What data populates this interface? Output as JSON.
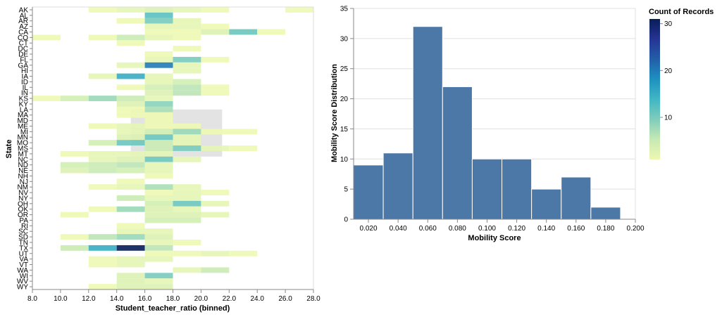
{
  "chart_data": [
    {
      "type": "heatmap",
      "xlabel": "Student_teacher_ratio (binned)",
      "ylabel": "State",
      "xlim": [
        8,
        28
      ],
      "x_ticks": [
        "8.0",
        "10.0",
        "12.0",
        "14.0",
        "16.0",
        "18.0",
        "20.0",
        "22.0",
        "24.0",
        "26.0",
        "28.0"
      ],
      "x_bin_width": 2,
      "states": [
        "AK",
        "AL",
        "AR",
        "AZ",
        "CA",
        "CO",
        "CT",
        "DC",
        "DE",
        "FL",
        "GA",
        "HI",
        "IA",
        "ID",
        "IL",
        "IN",
        "KS",
        "KY",
        "LA",
        "MA",
        "MD",
        "ME",
        "MI",
        "MN",
        "MO",
        "MS",
        "MT",
        "NC",
        "ND",
        "NE",
        "NH",
        "NJ",
        "NM",
        "NV",
        "NY",
        "OH",
        "OK",
        "OR",
        "PA",
        "RI",
        "SC",
        "SD",
        "TN",
        "TX",
        "UT",
        "VA",
        "VT",
        "WA",
        "WI",
        "WV",
        "WY"
      ],
      "cells": [
        [
          "AK",
          12,
          1
        ],
        [
          "AK",
          14,
          2
        ],
        [
          "AK",
          16,
          3
        ],
        [
          "AK",
          18,
          2
        ],
        [
          "AK",
          20,
          1
        ],
        [
          "AK",
          26,
          1
        ],
        [
          "AL",
          16,
          12
        ],
        [
          "AR",
          14,
          1
        ],
        [
          "AR",
          16,
          10
        ],
        [
          "AR",
          18,
          2
        ],
        [
          "AZ",
          16,
          2
        ],
        [
          "AZ",
          18,
          2
        ],
        [
          "AZ",
          20,
          1
        ],
        [
          "CA",
          16,
          1
        ],
        [
          "CA",
          18,
          1
        ],
        [
          "CA",
          20,
          3
        ],
        [
          "CA",
          22,
          11
        ],
        [
          "CA",
          24,
          1
        ],
        [
          "CO",
          8,
          1
        ],
        [
          "CO",
          12,
          1
        ],
        [
          "CO",
          14,
          5
        ],
        [
          "CO",
          16,
          2
        ],
        [
          "CO",
          18,
          1
        ],
        [
          "CT",
          14,
          1
        ],
        [
          "DC",
          18,
          1
        ],
        [
          "DE",
          16,
          1
        ],
        [
          "FL",
          16,
          2
        ],
        [
          "FL",
          18,
          10
        ],
        [
          "FL",
          20,
          1
        ],
        [
          "GA",
          14,
          2
        ],
        [
          "GA",
          16,
          20
        ],
        [
          "GA",
          18,
          2
        ],
        [
          "HI",
          18,
          2
        ],
        [
          "IA",
          12,
          2
        ],
        [
          "IA",
          14,
          15
        ],
        [
          "IA",
          16,
          2
        ],
        [
          "ID",
          16,
          2
        ],
        [
          "ID",
          18,
          4
        ],
        [
          "IL",
          14,
          1
        ],
        [
          "IL",
          16,
          4
        ],
        [
          "IL",
          18,
          6
        ],
        [
          "IL",
          20,
          1
        ],
        [
          "IN",
          16,
          3
        ],
        [
          "IN",
          18,
          6
        ],
        [
          "IN",
          20,
          1
        ],
        [
          "KS",
          8,
          1
        ],
        [
          "KS",
          10,
          4
        ],
        [
          "KS",
          12,
          8
        ],
        [
          "KS",
          14,
          5
        ],
        [
          "KS",
          16,
          2
        ],
        [
          "KY",
          14,
          3
        ],
        [
          "KY",
          16,
          9
        ],
        [
          "LA",
          14,
          1
        ],
        [
          "LA",
          16,
          7
        ],
        [
          "MA",
          14,
          1
        ],
        [
          "MA",
          16,
          1
        ],
        [
          "MD",
          16,
          1
        ],
        [
          "ME",
          12,
          1
        ],
        [
          "ME",
          14,
          2
        ],
        [
          "ME",
          16,
          1
        ],
        [
          "ME",
          18,
          1
        ],
        [
          "MI",
          14,
          2
        ],
        [
          "MI",
          16,
          4
        ],
        [
          "MI",
          18,
          8
        ],
        [
          "MI",
          20,
          1
        ],
        [
          "MI",
          22,
          1
        ],
        [
          "MN",
          14,
          3
        ],
        [
          "MN",
          16,
          11
        ],
        [
          "MN",
          18,
          2
        ],
        [
          "MO",
          12,
          4
        ],
        [
          "MO",
          14,
          11
        ],
        [
          "MO",
          16,
          5
        ],
        [
          "MO",
          18,
          2
        ],
        [
          "MS",
          16,
          5
        ],
        [
          "MS",
          18,
          10
        ],
        [
          "MS",
          20,
          2
        ],
        [
          "MS",
          22,
          1
        ],
        [
          "MT",
          10,
          1
        ],
        [
          "MT",
          12,
          2
        ],
        [
          "MT",
          14,
          2
        ],
        [
          "MT",
          16,
          2
        ],
        [
          "NC",
          12,
          2
        ],
        [
          "NC",
          14,
          3
        ],
        [
          "NC",
          16,
          11
        ],
        [
          "NC",
          18,
          2
        ],
        [
          "ND",
          10,
          4
        ],
        [
          "ND",
          12,
          5
        ],
        [
          "ND",
          14,
          6
        ],
        [
          "ND",
          16,
          2
        ],
        [
          "NE",
          10,
          3
        ],
        [
          "NE",
          12,
          5
        ],
        [
          "NE",
          14,
          4
        ],
        [
          "NE",
          16,
          2
        ],
        [
          "NH",
          16,
          1
        ],
        [
          "NJ",
          14,
          1
        ],
        [
          "NM",
          12,
          1
        ],
        [
          "NM",
          14,
          2
        ],
        [
          "NM",
          16,
          7
        ],
        [
          "NM",
          18,
          2
        ],
        [
          "NV",
          16,
          1
        ],
        [
          "NV",
          18,
          2
        ],
        [
          "NV",
          20,
          1
        ],
        [
          "NY",
          14,
          5
        ],
        [
          "NY",
          16,
          2
        ],
        [
          "NY",
          18,
          2
        ],
        [
          "OH",
          16,
          4
        ],
        [
          "OH",
          18,
          11
        ],
        [
          "OH",
          20,
          2
        ],
        [
          "OK",
          12,
          1
        ],
        [
          "OK",
          14,
          8
        ],
        [
          "OK",
          16,
          3
        ],
        [
          "OK",
          18,
          2
        ],
        [
          "OR",
          10,
          1
        ],
        [
          "OR",
          16,
          3
        ],
        [
          "OR",
          18,
          3
        ],
        [
          "OR",
          20,
          2
        ],
        [
          "PA",
          16,
          4
        ],
        [
          "PA",
          18,
          4
        ],
        [
          "RI",
          14,
          1
        ],
        [
          "SC",
          14,
          2
        ],
        [
          "SC",
          16,
          2
        ],
        [
          "SD",
          10,
          1
        ],
        [
          "SD",
          12,
          6
        ],
        [
          "SD",
          14,
          8
        ],
        [
          "SD",
          16,
          3
        ],
        [
          "TN",
          16,
          2
        ],
        [
          "TN",
          18,
          1
        ],
        [
          "TX",
          10,
          5
        ],
        [
          "TX",
          12,
          15
        ],
        [
          "TX",
          14,
          31
        ],
        [
          "TX",
          16,
          6
        ],
        [
          "UT",
          16,
          1
        ],
        [
          "UT",
          18,
          1
        ],
        [
          "UT",
          20,
          2
        ],
        [
          "UT",
          22,
          1
        ],
        [
          "VA",
          12,
          1
        ],
        [
          "VA",
          14,
          2
        ],
        [
          "VA",
          16,
          2
        ],
        [
          "VT",
          12,
          1
        ],
        [
          "VT",
          14,
          2
        ],
        [
          "WA",
          18,
          2
        ],
        [
          "WA",
          20,
          5
        ],
        [
          "WI",
          14,
          3
        ],
        [
          "WI",
          16,
          10
        ],
        [
          "WV",
          14,
          3
        ],
        [
          "WV",
          16,
          2
        ],
        [
          "WY",
          12,
          1
        ],
        [
          "WY",
          14,
          3
        ],
        [
          "WY",
          16,
          3
        ]
      ]
    },
    {
      "type": "bar",
      "xlabel": "Mobility Score",
      "ylabel": "Mobility Score Distribution",
      "xlim": [
        0.01,
        0.2
      ],
      "ylim": [
        0,
        35
      ],
      "x_ticks": [
        "0.020",
        "0.040",
        "0.060",
        "0.080",
        "0.100",
        "0.120",
        "0.140",
        "0.160",
        "0.180",
        "0.200"
      ],
      "y_ticks": [
        "0",
        "5",
        "10",
        "15",
        "20",
        "25",
        "30",
        "35"
      ],
      "bins": [
        {
          "x0": 0.01,
          "x1": 0.03,
          "value": 9
        },
        {
          "x0": 0.03,
          "x1": 0.05,
          "value": 11
        },
        {
          "x0": 0.05,
          "x1": 0.07,
          "value": 32
        },
        {
          "x0": 0.07,
          "x1": 0.09,
          "value": 22
        },
        {
          "x0": 0.09,
          "x1": 0.11,
          "value": 10
        },
        {
          "x0": 0.11,
          "x1": 0.13,
          "value": 10
        },
        {
          "x0": 0.13,
          "x1": 0.15,
          "value": 5
        },
        {
          "x0": 0.15,
          "x1": 0.17,
          "value": 7
        },
        {
          "x0": 0.17,
          "x1": 0.19,
          "value": 2
        }
      ],
      "bar_color": "#4c78a8",
      "grid": true
    }
  ],
  "legend": {
    "title": "Count of Records",
    "ticks": [
      "10",
      "20",
      "30"
    ],
    "domain": [
      1,
      31
    ],
    "colors": [
      "#edf8b1",
      "#c7e9b4",
      "#7fcdbb",
      "#41b6c4",
      "#1d91c0",
      "#225ea8",
      "#253494",
      "#081d58"
    ],
    "placement": "right"
  }
}
